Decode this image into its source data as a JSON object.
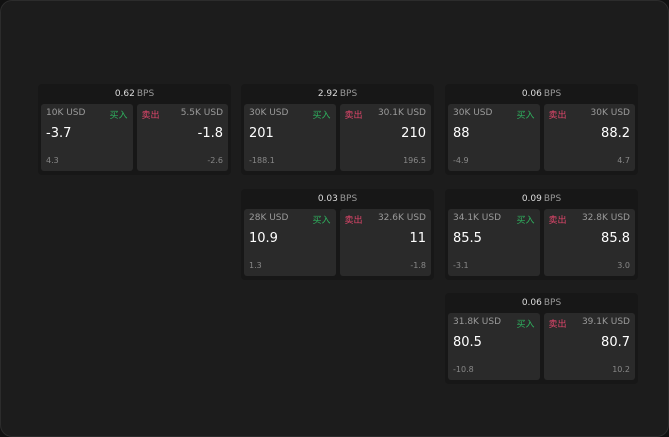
{
  "labels": {
    "buy": "买入",
    "sell": "卖出",
    "unit": "BPS"
  },
  "colors": {
    "buy": "#2fb35f",
    "sell": "#e0466b"
  },
  "panels": [
    {
      "spread": "0.62",
      "bid": {
        "size": "10K USD",
        "price": "-3.7",
        "change": "4.3"
      },
      "ask": {
        "size": "5.5K USD",
        "price": "-1.8",
        "change": "-2.6"
      }
    },
    {
      "spread": "2.92",
      "bid": {
        "size": "30K USD",
        "price": "201",
        "change": "-188.1"
      },
      "ask": {
        "size": "30.1K USD",
        "price": "210",
        "change": "196.5"
      }
    },
    {
      "spread": "0.06",
      "bid": {
        "size": "30K USD",
        "price": "88",
        "change": "-4.9"
      },
      "ask": {
        "size": "30K USD",
        "price": "88.2",
        "change": "4.7"
      }
    },
    {
      "spread": "0.03",
      "bid": {
        "size": "28K USD",
        "price": "10.9",
        "change": "1.3"
      },
      "ask": {
        "size": "32.6K USD",
        "price": "11",
        "change": "-1.8"
      }
    },
    {
      "spread": "0.09",
      "bid": {
        "size": "34.1K USD",
        "price": "85.5",
        "change": "-3.1"
      },
      "ask": {
        "size": "32.8K USD",
        "price": "85.8",
        "change": "3.0"
      }
    },
    {
      "spread": "0.06",
      "bid": {
        "size": "31.8K USD",
        "price": "80.5",
        "change": "-10.8"
      },
      "ask": {
        "size": "39.1K USD",
        "price": "80.7",
        "change": "10.2"
      }
    }
  ]
}
